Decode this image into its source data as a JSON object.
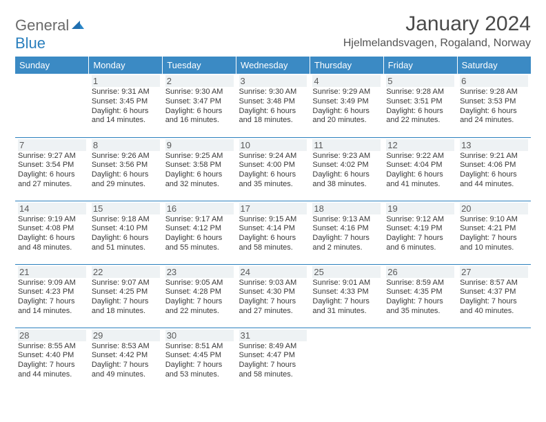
{
  "logo": {
    "text1": "General",
    "text2": "Blue"
  },
  "title": "January 2024",
  "location": "Hjelmelandsvagen, Rogaland, Norway",
  "colors": {
    "header_bg": "#3b8ac4",
    "header_text": "#ffffff",
    "border": "#2a7fbd",
    "daynum_bg": "#eef2f4",
    "text": "#333333",
    "logo_gray": "#6a6a6a",
    "logo_blue": "#2a7fbd"
  },
  "weekdays": [
    "Sunday",
    "Monday",
    "Tuesday",
    "Wednesday",
    "Thursday",
    "Friday",
    "Saturday"
  ],
  "weeks": [
    [
      {},
      {
        "n": "1",
        "sr": "9:31 AM",
        "ss": "3:45 PM",
        "dl": "6 hours and 14 minutes."
      },
      {
        "n": "2",
        "sr": "9:30 AM",
        "ss": "3:47 PM",
        "dl": "6 hours and 16 minutes."
      },
      {
        "n": "3",
        "sr": "9:30 AM",
        "ss": "3:48 PM",
        "dl": "6 hours and 18 minutes."
      },
      {
        "n": "4",
        "sr": "9:29 AM",
        "ss": "3:49 PM",
        "dl": "6 hours and 20 minutes."
      },
      {
        "n": "5",
        "sr": "9:28 AM",
        "ss": "3:51 PM",
        "dl": "6 hours and 22 minutes."
      },
      {
        "n": "6",
        "sr": "9:28 AM",
        "ss": "3:53 PM",
        "dl": "6 hours and 24 minutes."
      }
    ],
    [
      {
        "n": "7",
        "sr": "9:27 AM",
        "ss": "3:54 PM",
        "dl": "6 hours and 27 minutes."
      },
      {
        "n": "8",
        "sr": "9:26 AM",
        "ss": "3:56 PM",
        "dl": "6 hours and 29 minutes."
      },
      {
        "n": "9",
        "sr": "9:25 AM",
        "ss": "3:58 PM",
        "dl": "6 hours and 32 minutes."
      },
      {
        "n": "10",
        "sr": "9:24 AM",
        "ss": "4:00 PM",
        "dl": "6 hours and 35 minutes."
      },
      {
        "n": "11",
        "sr": "9:23 AM",
        "ss": "4:02 PM",
        "dl": "6 hours and 38 minutes."
      },
      {
        "n": "12",
        "sr": "9:22 AM",
        "ss": "4:04 PM",
        "dl": "6 hours and 41 minutes."
      },
      {
        "n": "13",
        "sr": "9:21 AM",
        "ss": "4:06 PM",
        "dl": "6 hours and 44 minutes."
      }
    ],
    [
      {
        "n": "14",
        "sr": "9:19 AM",
        "ss": "4:08 PM",
        "dl": "6 hours and 48 minutes."
      },
      {
        "n": "15",
        "sr": "9:18 AM",
        "ss": "4:10 PM",
        "dl": "6 hours and 51 minutes."
      },
      {
        "n": "16",
        "sr": "9:17 AM",
        "ss": "4:12 PM",
        "dl": "6 hours and 55 minutes."
      },
      {
        "n": "17",
        "sr": "9:15 AM",
        "ss": "4:14 PM",
        "dl": "6 hours and 58 minutes."
      },
      {
        "n": "18",
        "sr": "9:13 AM",
        "ss": "4:16 PM",
        "dl": "7 hours and 2 minutes."
      },
      {
        "n": "19",
        "sr": "9:12 AM",
        "ss": "4:19 PM",
        "dl": "7 hours and 6 minutes."
      },
      {
        "n": "20",
        "sr": "9:10 AM",
        "ss": "4:21 PM",
        "dl": "7 hours and 10 minutes."
      }
    ],
    [
      {
        "n": "21",
        "sr": "9:09 AM",
        "ss": "4:23 PM",
        "dl": "7 hours and 14 minutes."
      },
      {
        "n": "22",
        "sr": "9:07 AM",
        "ss": "4:25 PM",
        "dl": "7 hours and 18 minutes."
      },
      {
        "n": "23",
        "sr": "9:05 AM",
        "ss": "4:28 PM",
        "dl": "7 hours and 22 minutes."
      },
      {
        "n": "24",
        "sr": "9:03 AM",
        "ss": "4:30 PM",
        "dl": "7 hours and 27 minutes."
      },
      {
        "n": "25",
        "sr": "9:01 AM",
        "ss": "4:33 PM",
        "dl": "7 hours and 31 minutes."
      },
      {
        "n": "26",
        "sr": "8:59 AM",
        "ss": "4:35 PM",
        "dl": "7 hours and 35 minutes."
      },
      {
        "n": "27",
        "sr": "8:57 AM",
        "ss": "4:37 PM",
        "dl": "7 hours and 40 minutes."
      }
    ],
    [
      {
        "n": "28",
        "sr": "8:55 AM",
        "ss": "4:40 PM",
        "dl": "7 hours and 44 minutes."
      },
      {
        "n": "29",
        "sr": "8:53 AM",
        "ss": "4:42 PM",
        "dl": "7 hours and 49 minutes."
      },
      {
        "n": "30",
        "sr": "8:51 AM",
        "ss": "4:45 PM",
        "dl": "7 hours and 53 minutes."
      },
      {
        "n": "31",
        "sr": "8:49 AM",
        "ss": "4:47 PM",
        "dl": "7 hours and 58 minutes."
      },
      {},
      {},
      {}
    ]
  ],
  "labels": {
    "sunrise": "Sunrise:",
    "sunset": "Sunset:",
    "daylight": "Daylight:"
  }
}
